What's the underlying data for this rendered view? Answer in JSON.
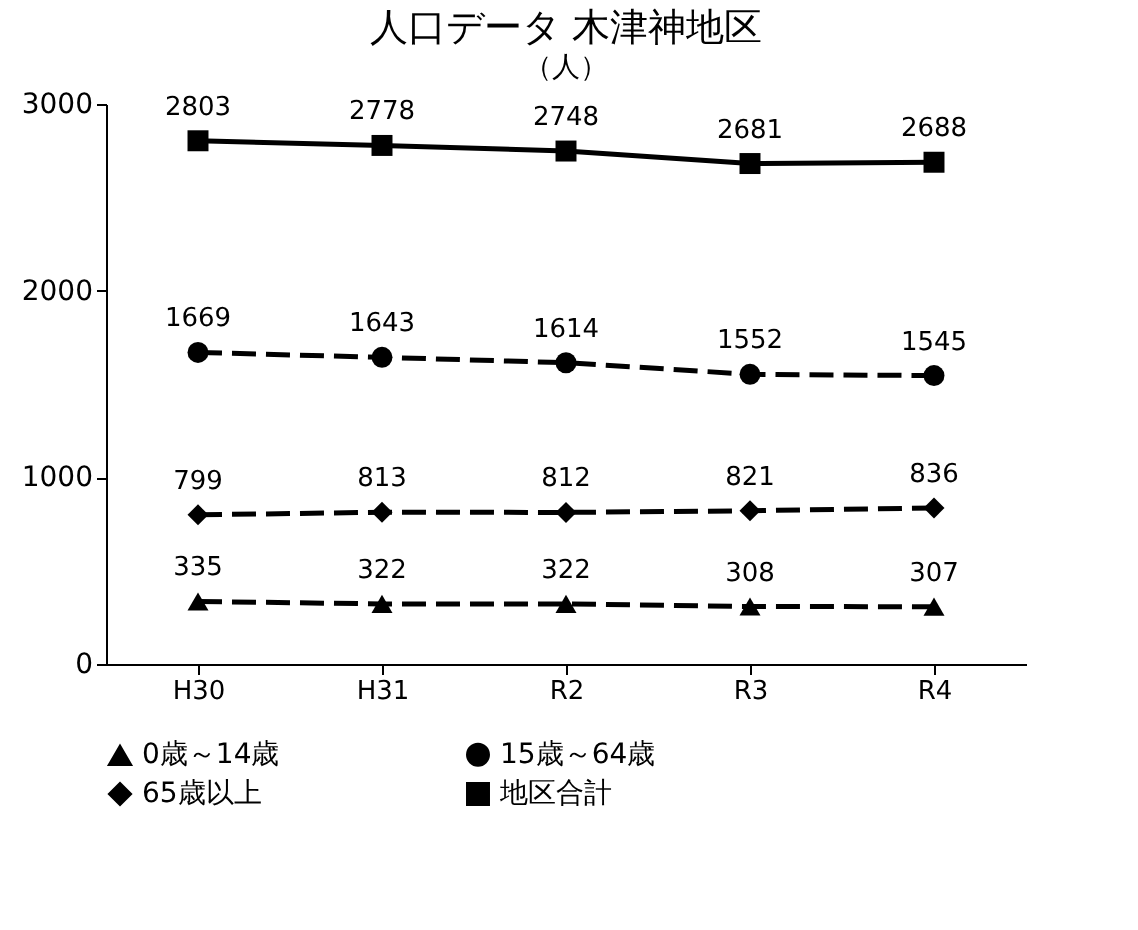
{
  "chart_data": {
    "type": "line",
    "title": "人口データ 木津神地区",
    "ylabel": "（人）",
    "categories": [
      "H30",
      "H31",
      "R2",
      "R3",
      "R4"
    ],
    "series": [
      {
        "name": "0歳～14歳",
        "color": "#000000",
        "values": [
          335,
          322,
          322,
          308,
          307
        ],
        "marker": "triangle",
        "line_style": "dashed"
      },
      {
        "name": "15歳～64歳",
        "color": "#000000",
        "values": [
          1669,
          1643,
          1614,
          1552,
          1545
        ],
        "marker": "circle",
        "line_style": "dashed"
      },
      {
        "name": "65歳以上",
        "color": "#000000",
        "values": [
          799,
          813,
          812,
          821,
          836
        ],
        "marker": "diamond",
        "line_style": "dashed"
      },
      {
        "name": "地区合計",
        "color": "#000000",
        "values": [
          2803,
          2778,
          2748,
          2681,
          2688
        ],
        "marker": "square",
        "line_style": "solid"
      }
    ],
    "ylim": [
      0,
      3000
    ],
    "yticks": [
      0,
      1000,
      2000,
      3000
    ],
    "grid": false,
    "legend": "bottom",
    "data_labels": true
  }
}
